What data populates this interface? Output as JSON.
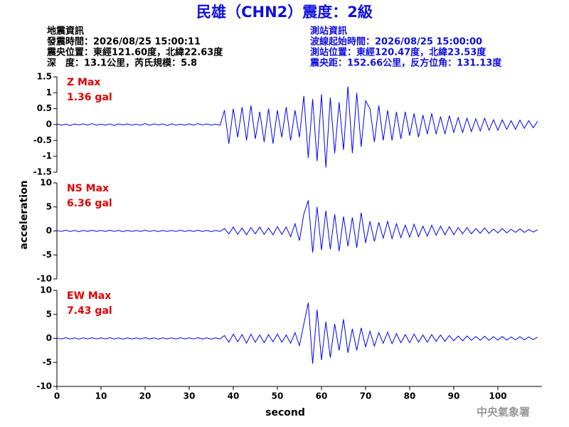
{
  "header": {
    "title": "民雄（CHN2）震度：2級",
    "left": [
      "地震資訊",
      "發震時間：2026/08/25 15:00:11",
      "震央位置：東經121.60度，北緯22.63度",
      "深　度：13.1公里，芮氏規模：5.8"
    ],
    "right": [
      "測站資訊",
      "波線起始時間：2026/08/25 15:00:00",
      "測站位置：東經120.47度，北緯23.53度",
      "震央距：152.66公里，反方位角：131.13度"
    ]
  },
  "ylabel": "acceleration",
  "footer": "中央氣象署",
  "chart_data": [
    {
      "type": "line",
      "annotations": [
        "Z Max",
        "1.36 gal"
      ],
      "color": "#0000ff",
      "xlim": [
        0,
        110
      ],
      "ylim": [
        -1.5,
        1.5
      ],
      "yticks": [
        -1.5,
        -1,
        -0.5,
        0,
        0.5,
        1,
        1.5
      ],
      "x": [
        0,
        1,
        2,
        3,
        4,
        5,
        6,
        7,
        8,
        9,
        10,
        11,
        12,
        13,
        14,
        15,
        16,
        17,
        18,
        19,
        20,
        21,
        22,
        23,
        24,
        25,
        26,
        27,
        28,
        29,
        30,
        31,
        32,
        33,
        34,
        35,
        36,
        37,
        38,
        39,
        40,
        41,
        42,
        43,
        44,
        45,
        46,
        47,
        48,
        49,
        50,
        51,
        52,
        53,
        54,
        55,
        56,
        57,
        58,
        59,
        60,
        61,
        62,
        63,
        64,
        65,
        66,
        67,
        68,
        69,
        70,
        71,
        72,
        73,
        74,
        75,
        76,
        77,
        78,
        79,
        80,
        81,
        82,
        83,
        84,
        85,
        86,
        87,
        88,
        89,
        90,
        91,
        92,
        93,
        94,
        95,
        96,
        97,
        98,
        99,
        100,
        101,
        102,
        103,
        104,
        105,
        106,
        107,
        108,
        109
      ],
      "values": [
        0.02,
        -0.02,
        0.01,
        -0.03,
        0.02,
        -0.01,
        0.02,
        -0.02,
        0.03,
        -0.02,
        0.01,
        -0.02,
        0.02,
        -0.03,
        0.02,
        -0.01,
        0.02,
        -0.02,
        0.01,
        -0.02,
        0.03,
        -0.02,
        0.02,
        -0.01,
        0.02,
        -0.03,
        0.02,
        -0.02,
        0.01,
        -0.02,
        0.02,
        -0.02,
        0.03,
        -0.01,
        0.02,
        -0.02,
        0.01,
        -0.02,
        0.45,
        -0.6,
        0.5,
        -0.4,
        0.55,
        -0.5,
        0.6,
        -0.45,
        0.4,
        -0.55,
        0.5,
        -0.6,
        0.45,
        -0.4,
        0.55,
        -0.5,
        0.45,
        -0.4,
        0.9,
        -1.05,
        0.8,
        -1.15,
        0.95,
        -1.35,
        0.85,
        -0.9,
        0.7,
        -0.8,
        1.2,
        -0.9,
        1.0,
        -0.7,
        0.75,
        0.5,
        -0.55,
        0.6,
        -0.5,
        0.45,
        -0.5,
        0.4,
        -0.45,
        0.4,
        -0.35,
        0.35,
        -0.4,
        0.3,
        -0.3,
        0.35,
        -0.3,
        0.25,
        -0.3,
        0.28,
        -0.25,
        0.22,
        -0.25,
        0.2,
        -0.22,
        0.18,
        -0.2,
        0.2,
        -0.18,
        0.15,
        -0.18,
        0.15,
        -0.15,
        0.12,
        -0.15,
        0.14,
        -0.12,
        0.12,
        -0.1,
        0.1
      ]
    },
    {
      "type": "line",
      "annotations": [
        "NS Max",
        "6.36 gal"
      ],
      "color": "#0000ff",
      "xlim": [
        0,
        110
      ],
      "ylim": [
        -10,
        10
      ],
      "yticks": [
        -10,
        -5,
        0,
        5,
        10
      ],
      "x": [
        0,
        1,
        2,
        3,
        4,
        5,
        6,
        7,
        8,
        9,
        10,
        11,
        12,
        13,
        14,
        15,
        16,
        17,
        18,
        19,
        20,
        21,
        22,
        23,
        24,
        25,
        26,
        27,
        28,
        29,
        30,
        31,
        32,
        33,
        34,
        35,
        36,
        37,
        38,
        39,
        40,
        41,
        42,
        43,
        44,
        45,
        46,
        47,
        48,
        49,
        50,
        51,
        52,
        53,
        54,
        55,
        56,
        57,
        58,
        59,
        60,
        61,
        62,
        63,
        64,
        65,
        66,
        67,
        68,
        69,
        70,
        71,
        72,
        73,
        74,
        75,
        76,
        77,
        78,
        79,
        80,
        81,
        82,
        83,
        84,
        85,
        86,
        87,
        88,
        89,
        90,
        91,
        92,
        93,
        94,
        95,
        96,
        97,
        98,
        99,
        100,
        101,
        102,
        103,
        104,
        105,
        106,
        107,
        108,
        109
      ],
      "values": [
        0.1,
        -0.1,
        0.15,
        -0.1,
        0.1,
        -0.15,
        0.1,
        -0.1,
        0.15,
        -0.1,
        0.1,
        -0.1,
        0.15,
        -0.1,
        0.1,
        -0.15,
        0.1,
        -0.1,
        0.1,
        -0.1,
        0.15,
        -0.1,
        0.1,
        -0.15,
        0.1,
        -0.1,
        0.1,
        -0.1,
        0.15,
        -0.1,
        0.1,
        -0.1,
        0.15,
        -0.1,
        0.1,
        -0.15,
        0.1,
        -0.1,
        0.5,
        -0.6,
        0.8,
        -0.7,
        0.6,
        -0.8,
        0.7,
        -0.6,
        0.8,
        -0.7,
        0.6,
        -0.8,
        0.9,
        -0.7,
        0.8,
        -1.2,
        1.5,
        -2.0,
        3.5,
        6.36,
        -4.5,
        5.0,
        -4.0,
        4.2,
        -3.8,
        3.5,
        -4.2,
        3.0,
        -3.2,
        2.8,
        -3.5,
        3.8,
        -2.5,
        2.0,
        -2.2,
        1.8,
        -1.5,
        2.0,
        -1.6,
        1.5,
        -1.4,
        1.2,
        -1.3,
        1.4,
        -1.2,
        1.0,
        -1.1,
        1.2,
        -0.9,
        1.0,
        -0.8,
        0.9,
        -0.8,
        0.7,
        -0.6,
        0.7,
        -0.6,
        0.5,
        -0.5,
        0.6,
        -0.5,
        0.4,
        -0.4,
        0.5,
        -0.4,
        0.35,
        -0.3,
        0.4,
        -0.3,
        0.3,
        -0.25,
        0.25
      ]
    },
    {
      "type": "line",
      "annotations": [
        "EW Max",
        "7.43 gal"
      ],
      "color": "#0000ff",
      "xlim": [
        0,
        110
      ],
      "ylim": [
        -10,
        10
      ],
      "yticks": [
        -10,
        -5,
        0,
        5,
        10
      ],
      "xticks": [
        0,
        10,
        20,
        30,
        40,
        50,
        60,
        70,
        80,
        90,
        100
      ],
      "xlabel": "second",
      "x": [
        0,
        1,
        2,
        3,
        4,
        5,
        6,
        7,
        8,
        9,
        10,
        11,
        12,
        13,
        14,
        15,
        16,
        17,
        18,
        19,
        20,
        21,
        22,
        23,
        24,
        25,
        26,
        27,
        28,
        29,
        30,
        31,
        32,
        33,
        34,
        35,
        36,
        37,
        38,
        39,
        40,
        41,
        42,
        43,
        44,
        45,
        46,
        47,
        48,
        49,
        50,
        51,
        52,
        53,
        54,
        55,
        56,
        57,
        58,
        59,
        60,
        61,
        62,
        63,
        64,
        65,
        66,
        67,
        68,
        69,
        70,
        71,
        72,
        73,
        74,
        75,
        76,
        77,
        78,
        79,
        80,
        81,
        82,
        83,
        84,
        85,
        86,
        87,
        88,
        89,
        90,
        91,
        92,
        93,
        94,
        95,
        96,
        97,
        98,
        99,
        100,
        101,
        102,
        103,
        104,
        105,
        106,
        107,
        108,
        109
      ],
      "values": [
        0.1,
        -0.1,
        0.15,
        -0.1,
        0.1,
        -0.15,
        0.1,
        -0.1,
        0.15,
        -0.1,
        0.1,
        -0.1,
        0.15,
        -0.1,
        0.1,
        -0.15,
        0.1,
        -0.1,
        0.1,
        -0.1,
        0.15,
        -0.1,
        0.1,
        -0.15,
        0.1,
        -0.1,
        0.1,
        -0.1,
        0.15,
        -0.1,
        0.1,
        -0.1,
        0.15,
        -0.1,
        0.1,
        -0.15,
        0.1,
        -0.1,
        0.6,
        -0.8,
        0.9,
        -0.7,
        0.8,
        -1.0,
        0.9,
        -0.8,
        0.7,
        -0.9,
        0.8,
        -0.7,
        0.9,
        -0.8,
        0.7,
        -1.0,
        1.2,
        -1.5,
        3.0,
        7.43,
        -5.3,
        6.0,
        -4.5,
        3.5,
        -4.0,
        3.0,
        -2.5,
        4.0,
        -3.0,
        2.0,
        -2.5,
        2.2,
        -1.8,
        1.5,
        -1.6,
        1.2,
        -1.0,
        1.3,
        -1.1,
        1.0,
        -0.9,
        0.8,
        -0.9,
        0.9,
        -0.8,
        0.7,
        -0.8,
        0.8,
        -0.6,
        0.7,
        -0.6,
        0.6,
        -0.5,
        0.5,
        -0.5,
        0.5,
        -0.4,
        0.4,
        -0.4,
        0.45,
        -0.4,
        0.35,
        -0.35,
        0.4,
        -0.35,
        0.3,
        -0.3,
        0.35,
        -0.3,
        0.3,
        -0.25,
        0.25
      ]
    }
  ]
}
